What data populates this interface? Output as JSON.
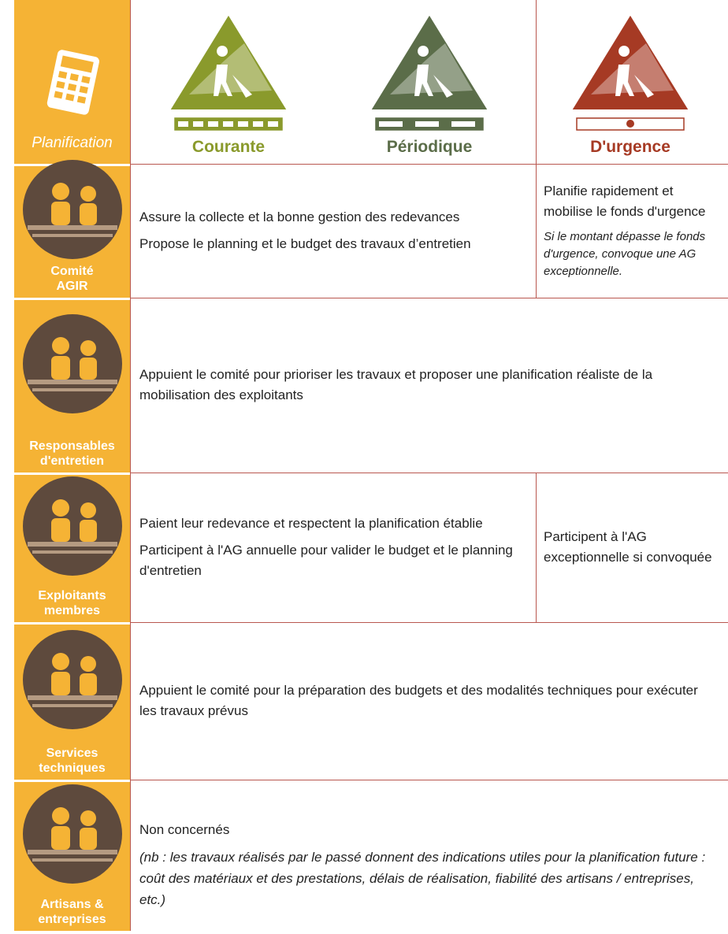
{
  "header": {
    "title": "Planification",
    "columns": [
      {
        "label": "Courante",
        "color": "#8a9a2c"
      },
      {
        "label": "Périodique",
        "color": "#5b6d49"
      },
      {
        "label": "D'urgence",
        "color": "#a63a24"
      }
    ]
  },
  "rows": [
    {
      "label": [
        "Comité",
        "AGIR"
      ],
      "cells": [
        {
          "paragraphs": [
            "Assure la collecte et la bonne gestion des redevances",
            "Propose le planning et le budget des travaux d’entretien"
          ]
        },
        {
          "paragraphs": [
            "Planifie rapidement et mobilise le fonds d'urgence"
          ],
          "note": "Si le montant dépasse le fonds d'urgence, convoque une AG exceptionnelle."
        }
      ]
    },
    {
      "label": [
        "Responsables",
        "d'entretien"
      ],
      "cells": [
        {
          "paragraphs": [
            "Appuient le comité pour prioriser les travaux et proposer une planification réaliste de la mobilisation des exploitants"
          ]
        }
      ]
    },
    {
      "label": [
        "Exploitants",
        "membres"
      ],
      "cells": [
        {
          "paragraphs": [
            "Paient leur redevance et respectent la planification établie",
            "Participent à l'AG annuelle pour valider le budget et le planning d'entretien"
          ]
        },
        {
          "paragraphs": [
            "Participent à l'AG exceptionnelle si convoquée"
          ]
        }
      ]
    },
    {
      "label": [
        "Services",
        "techniques"
      ],
      "cells": [
        {
          "paragraphs": [
            "Appuient le comité pour la préparation des budgets et des modalités techniques pour exécuter les travaux prévus"
          ]
        }
      ]
    },
    {
      "label": [
        "Artisans &",
        "entreprises"
      ],
      "cells": [
        {
          "paragraphs": [
            "Non concernés"
          ],
          "note": "(nb : les travaux réalisés par le passé donnent des indications utiles pour la planification future : coût des matériaux et des prestations, délais de réalisation, fiabilité des artisans / entreprises, etc.)"
        }
      ]
    }
  ]
}
